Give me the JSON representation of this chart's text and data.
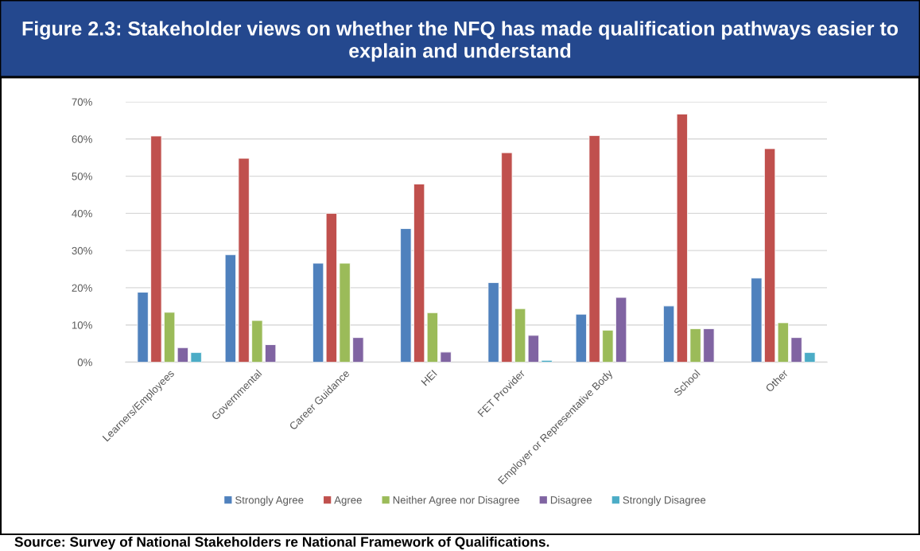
{
  "chart_data": {
    "type": "bar",
    "title": "Figure 2.3: Stakeholder views on whether the NFQ has made qualification pathways easier to explain and understand",
    "categories": [
      "Learners/Employees",
      "Governmental",
      "Career Guidance",
      "HEI",
      "FET Provider",
      "Employer or Representative Body",
      "School",
      "Other"
    ],
    "series": [
      {
        "name": "Strongly Agree",
        "color": "#4f81bd",
        "values": [
          18.8,
          28.9,
          26.6,
          35.9,
          21.4,
          12.9,
          15.1,
          22.6
        ]
      },
      {
        "name": "Agree",
        "color": "#c0504d",
        "values": [
          60.8,
          54.8,
          40.0,
          47.9,
          56.3,
          60.9,
          66.7,
          57.4
        ]
      },
      {
        "name": "Neither Agree nor Disagree",
        "color": "#9bbb59",
        "values": [
          13.4,
          11.2,
          26.6,
          13.3,
          14.4,
          8.6,
          9.0,
          10.6
        ]
      },
      {
        "name": "Disagree",
        "color": "#8064a2",
        "values": [
          3.9,
          4.7,
          6.6,
          2.7,
          7.2,
          17.4,
          9.0,
          6.6
        ]
      },
      {
        "name": "Strongly Disagree",
        "color": "#4bacc6",
        "values": [
          2.6,
          null,
          null,
          null,
          0.5,
          null,
          null,
          2.6
        ]
      }
    ],
    "ylim": [
      0,
      70
    ],
    "yticks": [
      {
        "value": 0,
        "label": "0%"
      },
      {
        "value": 10,
        "label": "10%"
      },
      {
        "value": 20,
        "label": "20%"
      },
      {
        "value": 30,
        "label": "30%"
      },
      {
        "value": 40,
        "label": "40%"
      },
      {
        "value": 50,
        "label": "50%"
      },
      {
        "value": 60,
        "label": "60%"
      },
      {
        "value": 70,
        "label": "70%"
      }
    ],
    "grid": "y",
    "legend": "bottom",
    "annotations": [
      "Source: Survey of National Stakeholders re National Framework of Qualifications."
    ]
  }
}
